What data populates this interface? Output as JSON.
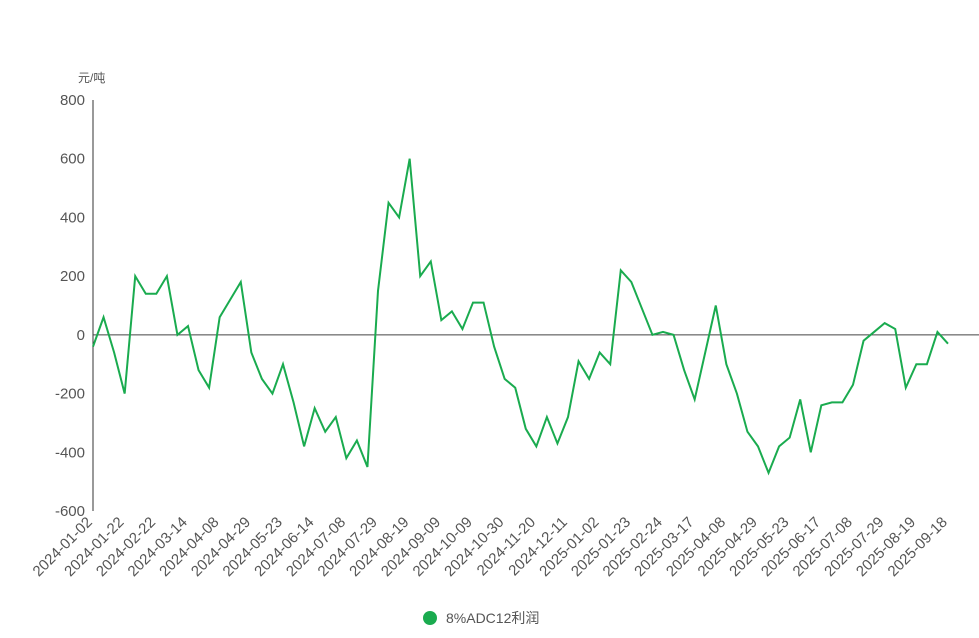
{
  "chart_data": {
    "type": "line",
    "y_unit": "元/吨",
    "categories": [
      "2024-01-02",
      null,
      null,
      "2024-01-22",
      null,
      null,
      "2024-02-22",
      null,
      null,
      "2024-03-14",
      null,
      null,
      "2024-04-08",
      null,
      null,
      "2024-04-29",
      null,
      null,
      "2024-05-23",
      null,
      null,
      "2024-06-14",
      null,
      null,
      "2024-07-08",
      null,
      null,
      "2024-07-29",
      null,
      null,
      "2024-08-19",
      null,
      null,
      "2024-09-09",
      null,
      null,
      "2024-10-09",
      null,
      null,
      "2024-10-30",
      null,
      null,
      "2024-11-20",
      null,
      null,
      "2024-12-11",
      null,
      null,
      "2025-01-02",
      null,
      null,
      "2025-01-23",
      null,
      null,
      "2025-02-24",
      null,
      null,
      "2025-03-17",
      null,
      null,
      "2025-04-08",
      null,
      null,
      "2025-04-29",
      null,
      null,
      "2025-05-23",
      null,
      null,
      "2025-06-17",
      null,
      null,
      "2025-07-08",
      null,
      null,
      "2025-07-29",
      null,
      null,
      "2025-08-19",
      null,
      null,
      "2025-09-18"
    ],
    "series": [
      {
        "name": "8%ADC12利润",
        "color": "#1aab4f",
        "values": [
          -40,
          60,
          -60,
          -200,
          200,
          140,
          140,
          200,
          0,
          30,
          -120,
          -180,
          60,
          120,
          180,
          -60,
          -150,
          -200,
          -100,
          -230,
          -380,
          -250,
          -330,
          -280,
          -420,
          -360,
          -450,
          150,
          450,
          400,
          600,
          200,
          250,
          50,
          80,
          20,
          110,
          110,
          -40,
          -150,
          -180,
          -320,
          -380,
          -280,
          -370,
          -280,
          -90,
          -150,
          -60,
          -100,
          220,
          180,
          90,
          0,
          10,
          0,
          -120,
          -220,
          -60,
          100,
          -100,
          -200,
          -330,
          -380,
          -470,
          -380,
          -350,
          -220,
          -400,
          -240,
          -230,
          -230,
          -170,
          -20,
          10,
          40,
          20,
          -180,
          -100,
          -100,
          10,
          -30
        ]
      }
    ],
    "ylim": [
      -600,
      800
    ],
    "yticks": [
      -600,
      -400,
      -200,
      0,
      200,
      400,
      600,
      800
    ]
  }
}
